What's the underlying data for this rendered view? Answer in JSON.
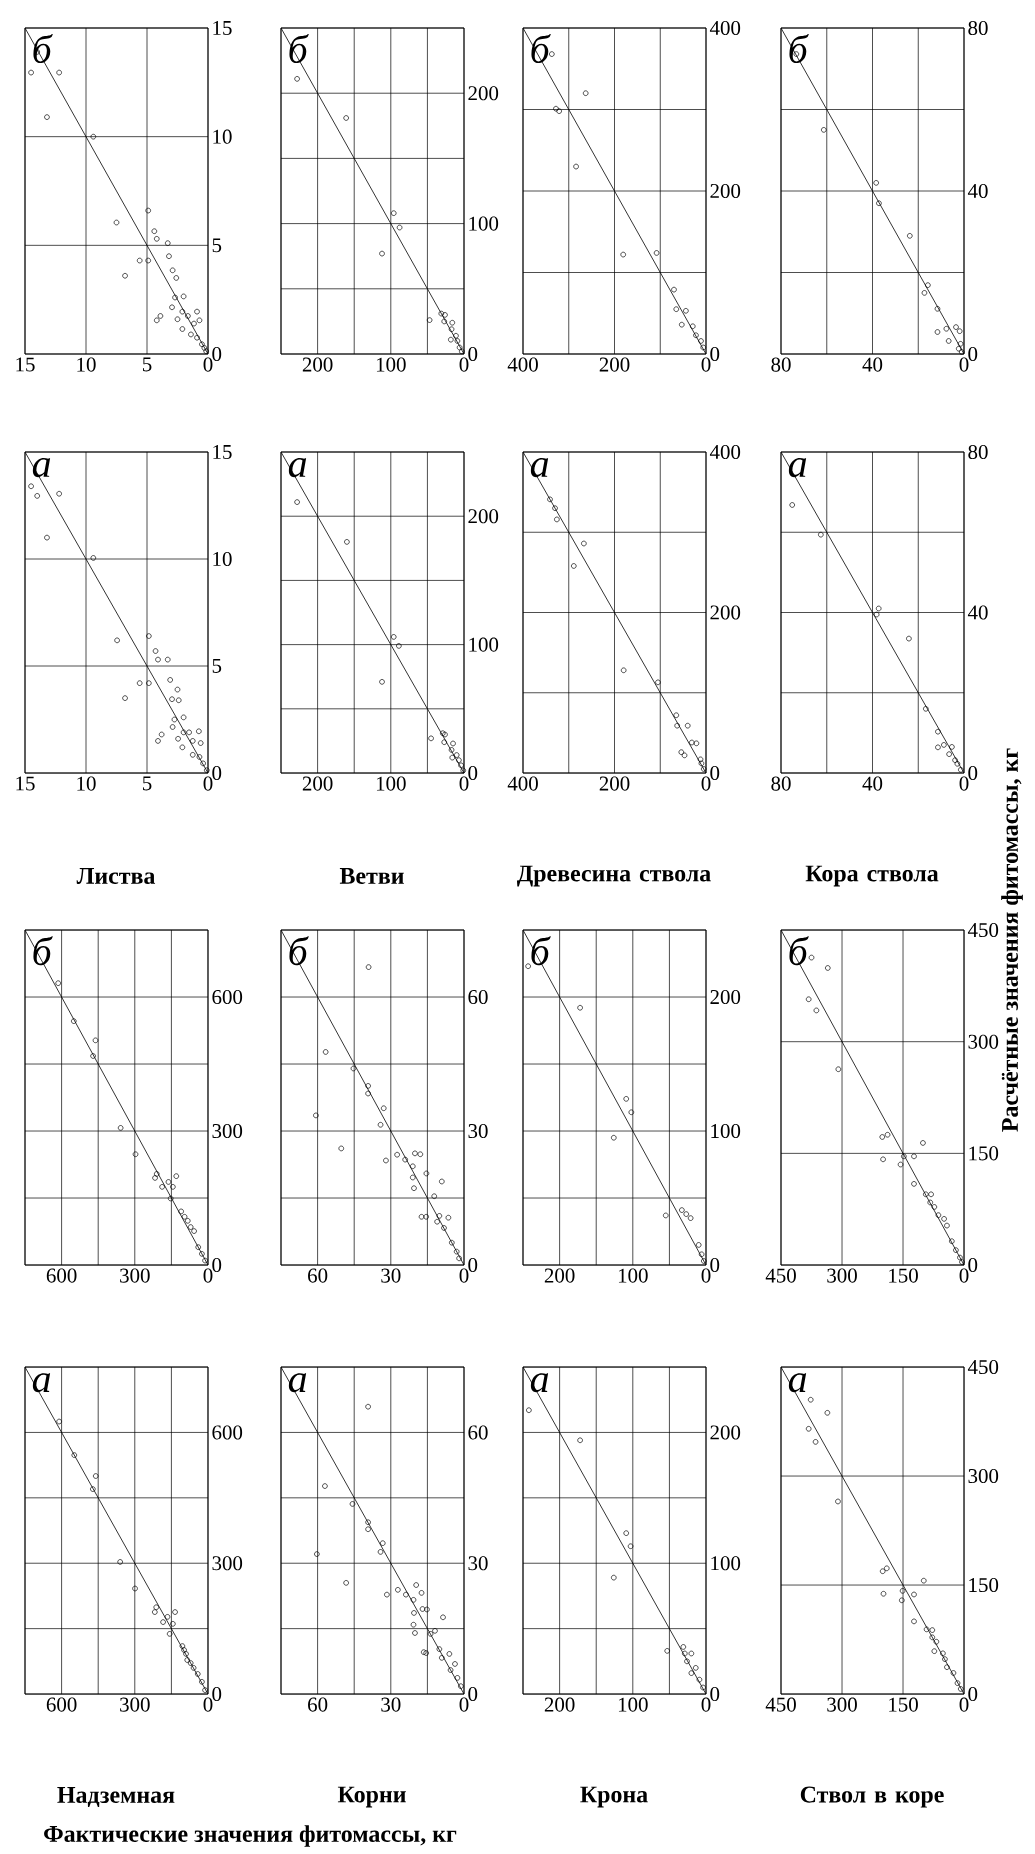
{
  "chart_data": [
    {
      "type": "scatter",
      "annotations": [
        "б"
      ],
      "xlim": [
        15,
        0
      ],
      "ylim": [
        0,
        15
      ],
      "xticks": [
        0,
        5,
        10,
        15
      ],
      "yticks": [
        0,
        5,
        10,
        15
      ],
      "grid": true,
      "series": [
        {
          "type": "scatter",
          "marker": "circle",
          "color": "#000000",
          "x": [
            14.0,
            14.5,
            12.2,
            13.2,
            9.4,
            4.9,
            7.5,
            4.4,
            4.2,
            3.3,
            3.2,
            5.6,
            4.9,
            6.8,
            2.9,
            2.6,
            2.7,
            2.0,
            2.95,
            2.1,
            4.2,
            3.9,
            2.5,
            1.65,
            0.9,
            2.1,
            1.15,
            0.7,
            1.4,
            0.9,
            0.5,
            0.3,
            0.15
          ],
          "values": [
            13.9,
            12.95,
            12.95,
            10.9,
            10.0,
            6.6,
            6.05,
            5.65,
            5.3,
            5.1,
            4.5,
            4.3,
            4.3,
            3.6,
            3.85,
            3.5,
            2.6,
            2.65,
            2.15,
            1.95,
            1.55,
            1.75,
            1.6,
            1.75,
            1.95,
            1.15,
            1.4,
            1.55,
            0.9,
            0.75,
            0.45,
            0.28,
            0.13
          ]
        },
        {
          "type": "line",
          "marker": "none",
          "color": "#000000",
          "x": [
            0,
            15
          ],
          "values": [
            0,
            15
          ]
        }
      ]
    },
    {
      "type": "scatter",
      "annotations": [
        "б"
      ],
      "xlim": [
        250,
        0
      ],
      "ylim": [
        0,
        250
      ],
      "xticks": [
        0,
        {
          "value": 50,
          "label": null
        },
        100,
        {
          "value": 150,
          "label": null
        },
        200,
        {
          "value": 250,
          "label": null
        }
      ],
      "yticks": [
        0,
        {
          "value": 50,
          "label": null
        },
        100,
        {
          "value": 150,
          "label": null
        },
        200,
        {
          "value": 250,
          "label": null
        }
      ],
      "grid": true,
      "series": [
        {
          "type": "scatter",
          "marker": "circle",
          "color": "#000000",
          "x": [
            228,
            161,
            96,
            88,
            112,
            47,
            31,
            26,
            27,
            16,
            17,
            11,
            18,
            9,
            6,
            3
          ],
          "values": [
            211,
            181,
            108,
            97,
            77,
            26,
            31,
            30,
            25,
            24,
            19,
            14,
            11,
            10,
            5,
            2
          ]
        },
        {
          "type": "line",
          "marker": "none",
          "color": "#000000",
          "x": [
            0,
            250
          ],
          "values": [
            0,
            250
          ]
        }
      ]
    },
    {
      "type": "scatter",
      "annotations": [
        "б"
      ],
      "xlim": [
        400,
        0
      ],
      "ylim": [
        0,
        400
      ],
      "xticks": [
        0,
        {
          "value": 100,
          "label": null
        },
        200,
        {
          "value": 300,
          "label": null
        },
        400
      ],
      "yticks": [
        0,
        {
          "value": 100,
          "label": null
        },
        200,
        {
          "value": 300,
          "label": null
        },
        400
      ],
      "grid": true,
      "series": [
        {
          "type": "scatter",
          "marker": "circle",
          "color": "#000000",
          "x": [
            337,
            263,
            328,
            321,
            284,
            181,
            108,
            70,
            65,
            44,
            53,
            29,
            22,
            11,
            6
          ],
          "values": [
            368,
            320,
            301,
            298,
            230,
            122,
            124,
            79,
            55,
            53,
            36,
            34,
            23,
            16,
            8
          ]
        },
        {
          "type": "line",
          "marker": "none",
          "color": "#000000",
          "x": [
            0,
            400
          ],
          "values": [
            0,
            400
          ]
        }
      ]
    },
    {
      "type": "scatter",
      "annotations": [
        "б"
      ],
      "xlim": [
        80,
        0
      ],
      "ylim": [
        0,
        80
      ],
      "xticks": [
        0,
        {
          "value": 20,
          "label": null
        },
        40,
        {
          "value": 60,
          "label": null
        },
        80
      ],
      "yticks": [
        0,
        {
          "value": 20,
          "label": null
        },
        40,
        {
          "value": 60,
          "label": null
        },
        80
      ],
      "grid": true,
      "series": [
        {
          "type": "scatter",
          "marker": "circle",
          "color": "#000000",
          "x": [
            73.3,
            61.3,
            38.4,
            37.2,
            23.7,
            15.8,
            17.3,
            11.6,
            11.6,
            7.7,
            3.5,
            1.9,
            6.7,
            1.5,
            2.3,
            1.0
          ],
          "values": [
            73.6,
            55,
            42,
            37,
            29,
            16.9,
            15,
            11.1,
            5.4,
            6.2,
            6.6,
            5.6,
            3.2,
            2.5,
            1.3,
            0.5
          ]
        },
        {
          "type": "line",
          "marker": "none",
          "color": "#000000",
          "x": [
            0,
            80
          ],
          "values": [
            0,
            80
          ]
        }
      ]
    },
    {
      "type": "scatter",
      "title": "Листва",
      "annotations": [
        "а"
      ],
      "xlim": [
        15,
        0
      ],
      "ylim": [
        0,
        15
      ],
      "xticks": [
        0,
        5,
        10,
        15
      ],
      "yticks": [
        0,
        5,
        10,
        15
      ],
      "grid": true,
      "series": [
        {
          "type": "scatter",
          "marker": "circle",
          "color": "#000000",
          "x": [
            14.5,
            14.0,
            12.2,
            13.2,
            9.4,
            7.45,
            4.85,
            4.3,
            4.1,
            3.3,
            4.85,
            5.6,
            6.8,
            3.1,
            2.5,
            2.95,
            2.4,
            2.0,
            2.75,
            2.9,
            4.1,
            3.8,
            2.0,
            1.55,
            0.75,
            2.45,
            2.1,
            1.25,
            0.6,
            1.25,
            0.7,
            0.4,
            0.1
          ],
          "values": [
            13.4,
            12.95,
            13.05,
            11.0,
            10.05,
            6.2,
            6.4,
            5.7,
            5.3,
            5.3,
            4.2,
            4.2,
            3.5,
            4.35,
            3.9,
            3.45,
            3.4,
            2.6,
            2.5,
            2.15,
            1.5,
            1.8,
            1.9,
            1.9,
            1.95,
            1.6,
            1.2,
            1.5,
            1.4,
            0.85,
            0.75,
            0.45,
            0.13
          ]
        },
        {
          "type": "line",
          "marker": "none",
          "color": "#000000",
          "x": [
            0,
            15
          ],
          "values": [
            0,
            15
          ]
        }
      ]
    },
    {
      "type": "scatter",
      "title": "Ветви",
      "annotations": [
        "а"
      ],
      "xlim": [
        250,
        0
      ],
      "ylim": [
        0,
        250
      ],
      "xticks": [
        0,
        {
          "value": 50,
          "label": null
        },
        100,
        {
          "value": 150,
          "label": null
        },
        200,
        {
          "value": 250,
          "label": null
        }
      ],
      "yticks": [
        0,
        {
          "value": 50,
          "label": null
        },
        100,
        {
          "value": 150,
          "label": null
        },
        200,
        {
          "value": 250,
          "label": null
        }
      ],
      "grid": true,
      "series": [
        {
          "type": "scatter",
          "marker": "circle",
          "color": "#000000",
          "x": [
            228,
            160,
            96,
            89,
            112,
            45,
            29,
            26,
            27,
            15,
            17,
            10,
            16,
            7,
            4,
            1
          ],
          "values": [
            211,
            180,
            106,
            99,
            71,
            27,
            31,
            30,
            24,
            23,
            18,
            14,
            12,
            10,
            6,
            2
          ]
        },
        {
          "type": "line",
          "marker": "none",
          "color": "#000000",
          "x": [
            0,
            250
          ],
          "values": [
            0,
            250
          ]
        }
      ]
    },
    {
      "type": "scatter",
      "title": "Древесина ствола",
      "annotations": [
        "а"
      ],
      "xlim": [
        400,
        0
      ],
      "ylim": [
        0,
        400
      ],
      "xticks": [
        0,
        {
          "value": 100,
          "label": null
        },
        200,
        {
          "value": 300,
          "label": null
        },
        400
      ],
      "yticks": [
        0,
        {
          "value": 100,
          "label": null
        },
        200,
        {
          "value": 300,
          "label": null
        },
        400
      ],
      "grid": true,
      "series": [
        {
          "type": "scatter",
          "marker": "circle",
          "color": "#000000",
          "x": [
            341,
            330,
            326,
            267,
            289,
            180,
            105,
            65,
            63,
            40,
            31,
            21,
            54,
            47,
            12,
            10,
            5
          ],
          "values": [
            341,
            330,
            316,
            286,
            258,
            128,
            113,
            72,
            59,
            59,
            38,
            37,
            26,
            22,
            17,
            12,
            5
          ]
        },
        {
          "type": "line",
          "marker": "none",
          "color": "#000000",
          "x": [
            0,
            400
          ],
          "values": [
            0,
            400
          ]
        }
      ]
    },
    {
      "type": "scatter",
      "title": "Кора ствола",
      "ylabel": "Расчётные значения фитомассы, кг",
      "annotations": [
        "а"
      ],
      "xlim": [
        80,
        0
      ],
      "ylim": [
        0,
        80
      ],
      "xticks": [
        0,
        {
          "value": 20,
          "label": null
        },
        40,
        {
          "value": 60,
          "label": null
        },
        80
      ],
      "yticks": [
        0,
        {
          "value": 20,
          "label": null
        },
        40,
        {
          "value": 60,
          "label": null
        },
        80
      ],
      "grid": true,
      "series": [
        {
          "type": "scatter",
          "marker": "circle",
          "color": "#000000",
          "x": [
            75.1,
            62.6,
            37.3,
            38.2,
            24.1,
            16.7,
            11.4,
            11.4,
            8.8,
            5.3,
            6.5,
            3.9,
            2.9,
            1.4
          ],
          "values": [
            66.8,
            59.4,
            41,
            39.5,
            33.5,
            16,
            10.3,
            6.4,
            7,
            6.5,
            4.7,
            3.2,
            2.3,
            0.8
          ]
        },
        {
          "type": "line",
          "marker": "none",
          "color": "#000000",
          "x": [
            0,
            80
          ],
          "values": [
            0,
            80
          ]
        }
      ]
    },
    {
      "type": "scatter",
      "annotations": [
        "б"
      ],
      "xlim": [
        750,
        0
      ],
      "ylim": [
        0,
        750
      ],
      "xticks": [
        0,
        {
          "value": 150,
          "label": null
        },
        300,
        {
          "value": 450,
          "label": null
        },
        600,
        {
          "value": 750,
          "label": null
        }
      ],
      "yticks": [
        0,
        {
          "value": 150,
          "label": null
        },
        300,
        {
          "value": 450,
          "label": null
        },
        600,
        {
          "value": 750,
          "label": null
        }
      ],
      "grid": true,
      "series": [
        {
          "type": "scatter",
          "marker": "circle",
          "color": "#000000",
          "x": [
            614,
            550,
            461,
            471,
            358,
            297,
            210,
            217,
            130,
            162,
            188,
            144,
            153,
            110,
            96,
            83,
            71,
            57,
            40,
            25,
            12
          ],
          "values": [
            631,
            546,
            503,
            468,
            307,
            248,
            204,
            195,
            199,
            186,
            175,
            175,
            149,
            120,
            108,
            99,
            85,
            76,
            40,
            25,
            10
          ]
        },
        {
          "type": "line",
          "marker": "none",
          "color": "#000000",
          "x": [
            0,
            750
          ],
          "values": [
            0,
            750
          ]
        }
      ]
    },
    {
      "type": "scatter",
      "annotations": [
        "б"
      ],
      "xlim": [
        75,
        0
      ],
      "ylim": [
        0,
        75
      ],
      "xticks": [
        0,
        {
          "value": 15,
          "label": null
        },
        30,
        {
          "value": 45,
          "label": null
        },
        60,
        {
          "value": 75,
          "label": null
        }
      ],
      "yticks": [
        0,
        {
          "value": 15,
          "label": null
        },
        30,
        {
          "value": 45,
          "label": null
        },
        60,
        {
          "value": 75,
          "label": null
        }
      ],
      "grid": true,
      "series": [
        {
          "type": "scatter",
          "marker": "circle",
          "color": "#000000",
          "x": [
            39.1,
            56.7,
            45.3,
            39.3,
            39.3,
            32.9,
            34.2,
            60.7,
            50.3,
            27.4,
            32.0,
            24.1,
            20.1,
            17.9,
            21.0,
            15.4,
            21.0,
            9.1,
            20.5,
            12.2,
            17.4,
            15.5,
            10.1,
            6.4,
            11.0,
            8.2,
            5,
            3,
            2
          ],
          "values": [
            66.7,
            47.7,
            44.0,
            40.1,
            38.4,
            35.1,
            31.4,
            33.5,
            26.1,
            24.7,
            23.4,
            23.6,
            25.0,
            24.8,
            22.1,
            20.5,
            19.6,
            18.7,
            17.2,
            15.4,
            10.8,
            10.8,
            11.0,
            10.6,
            9.7,
            8.3,
            5,
            3,
            1.5
          ]
        },
        {
          "type": "line",
          "marker": "none",
          "color": "#000000",
          "x": [
            0,
            75
          ],
          "values": [
            0,
            75
          ]
        }
      ]
    },
    {
      "type": "scatter",
      "annotations": [
        "б"
      ],
      "xlim": [
        250,
        0
      ],
      "ylim": [
        0,
        250
      ],
      "xticks": [
        0,
        {
          "value": 50,
          "label": null
        },
        100,
        {
          "value": 150,
          "label": null
        },
        200,
        {
          "value": 250,
          "label": null
        }
      ],
      "yticks": [
        0,
        {
          "value": 50,
          "label": null
        },
        100,
        {
          "value": 150,
          "label": null
        },
        200,
        {
          "value": 250,
          "label": null
        }
      ],
      "grid": true,
      "series": [
        {
          "type": "scatter",
          "marker": "circle",
          "color": "#000000",
          "x": [
            243,
            172,
            109,
            102,
            126,
            55,
            33,
            27,
            21,
            10,
            6,
            3
          ],
          "values": [
            223,
            192,
            124,
            114,
            95,
            37,
            41,
            38,
            35,
            15,
            8,
            3
          ]
        },
        {
          "type": "line",
          "marker": "none",
          "color": "#000000",
          "x": [
            0,
            250
          ],
          "values": [
            0,
            250
          ]
        }
      ]
    },
    {
      "type": "scatter",
      "annotations": [
        "б"
      ],
      "xlim": [
        450,
        0
      ],
      "ylim": [
        0,
        450
      ],
      "xticks": [
        0,
        150,
        300,
        450
      ],
      "yticks": [
        0,
        150,
        300,
        450
      ],
      "grid": true,
      "series": [
        {
          "type": "scatter",
          "marker": "circle",
          "color": "#000000",
          "x": [
            375,
            335,
            382,
            363,
            309,
            201,
            188,
            199,
            101,
            148,
            156,
            123,
            123,
            94,
            81,
            83,
            73,
            63,
            49,
            42,
            30,
            20,
            10,
            5
          ],
          "values": [
            413,
            399,
            357,
            342,
            263,
            172,
            175,
            142,
            164,
            146,
            135,
            146,
            109,
            95,
            95,
            84,
            78,
            67,
            62,
            53,
            32,
            20,
            10,
            4
          ]
        },
        {
          "type": "line",
          "marker": "none",
          "color": "#000000",
          "x": [
            0,
            450
          ],
          "values": [
            0,
            450
          ]
        }
      ]
    },
    {
      "type": "scatter",
      "title": "Надземная",
      "xlabel": "Фактические значения фитомассы, кг",
      "annotations": [
        "а"
      ],
      "xlim": [
        750,
        0
      ],
      "ylim": [
        0,
        750
      ],
      "xticks": [
        0,
        {
          "value": 150,
          "label": null
        },
        300,
        {
          "value": 450,
          "label": null
        },
        600,
        {
          "value": 750,
          "label": null
        }
      ],
      "yticks": [
        0,
        {
          "value": 150,
          "label": null
        },
        300,
        {
          "value": 450,
          "label": null
        },
        600,
        {
          "value": 750,
          "label": null
        }
      ],
      "grid": true,
      "series": [
        {
          "type": "scatter",
          "marker": "circle",
          "color": "#000000",
          "x": [
            610,
            548,
            460,
            472,
            360,
            299,
            212,
            218,
            135,
            166,
            184,
            144,
            157,
            105,
            98,
            90,
            85,
            71,
            59,
            42,
            25,
            12
          ],
          "values": [
            625,
            548,
            500,
            470,
            303,
            242,
            199,
            188,
            188,
            177,
            165,
            161,
            138,
            110,
            101,
            92,
            78,
            71,
            60,
            46,
            28,
            9
          ]
        },
        {
          "type": "line",
          "marker": "none",
          "color": "#000000",
          "x": [
            0,
            750
          ],
          "values": [
            0,
            750
          ]
        }
      ]
    },
    {
      "type": "scatter",
      "title": "Корни",
      "annotations": [
        "а"
      ],
      "xlim": [
        75,
        0
      ],
      "ylim": [
        0,
        75
      ],
      "xticks": [
        0,
        {
          "value": 15,
          "label": null
        },
        30,
        {
          "value": 45,
          "label": null
        },
        60,
        {
          "value": 75,
          "label": null
        }
      ],
      "yticks": [
        0,
        {
          "value": 15,
          "label": null
        },
        30,
        {
          "value": 45,
          "label": null
        },
        60,
        {
          "value": 75,
          "label": null
        }
      ],
      "grid": true,
      "series": [
        {
          "type": "scatter",
          "marker": "circle",
          "color": "#000000",
          "x": [
            39.3,
            57.0,
            45.7,
            39.3,
            39.3,
            33.3,
            34.2,
            60.3,
            48.3,
            27.1,
            31.6,
            23.8,
            19.6,
            17.4,
            20.7,
            17.0,
            15.2,
            20.5,
            8.6,
            20.7,
            20.1,
            11.9,
            13.7,
            16.5,
            15.5,
            10.1,
            6.0,
            9.1,
            3.7,
            5.5,
            2.7,
            1.3
          ],
          "values": [
            65.9,
            47.7,
            43.6,
            39.4,
            37.8,
            34.6,
            32.6,
            32.1,
            25.5,
            23.9,
            22.8,
            22.8,
            25.0,
            23.2,
            21.6,
            19.5,
            19.4,
            18.6,
            17.6,
            15.9,
            14.0,
            14.5,
            13.8,
            9.6,
            9.4,
            10.3,
            9.2,
            8.3,
            6.9,
            5.5,
            3.7,
            1.8
          ]
        },
        {
          "type": "line",
          "marker": "none",
          "color": "#000000",
          "x": [
            0,
            75
          ],
          "values": [
            0,
            75
          ]
        }
      ]
    },
    {
      "type": "scatter",
      "title": "Крона",
      "annotations": [
        "а"
      ],
      "xlim": [
        250,
        0
      ],
      "ylim": [
        0,
        250
      ],
      "xticks": [
        0,
        {
          "value": 50,
          "label": null
        },
        100,
        {
          "value": 150,
          "label": null
        },
        200,
        {
          "value": 250,
          "label": null
        }
      ],
      "yticks": [
        0,
        {
          "value": 50,
          "label": null
        },
        100,
        {
          "value": 150,
          "label": null
        },
        200,
        {
          "value": 250,
          "label": null
        }
      ],
      "grid": true,
      "series": [
        {
          "type": "scatter",
          "marker": "circle",
          "color": "#000000",
          "x": [
            242,
            172,
            109,
            103,
            126,
            53,
            31,
            29,
            20,
            26,
            14,
            20,
            9,
            4
          ],
          "values": [
            217,
            194,
            123,
            113,
            89,
            33,
            36,
            31,
            31,
            25,
            20,
            16,
            11,
            5
          ]
        },
        {
          "type": "line",
          "marker": "none",
          "color": "#000000",
          "x": [
            0,
            250
          ],
          "values": [
            0,
            250
          ]
        }
      ]
    },
    {
      "type": "scatter",
      "title": "Ствол в коре",
      "annotations": [
        "а"
      ],
      "xlim": [
        450,
        0
      ],
      "ylim": [
        0,
        450
      ],
      "xticks": [
        0,
        150,
        300,
        450
      ],
      "yticks": [
        0,
        150,
        300,
        450
      ],
      "grid": true,
      "series": [
        {
          "type": "scatter",
          "marker": "circle",
          "color": "#000000",
          "x": [
            377,
            336,
            382,
            365,
            310,
            200,
            190,
            198,
            99,
            151,
            153,
            123,
            123,
            92,
            78,
            78,
            68,
            73,
            52,
            47,
            42,
            26,
            16,
            8
          ],
          "values": [
            405,
            387,
            365,
            347,
            265,
            169,
            173,
            138,
            156,
            142,
            129,
            137,
            100,
            89,
            88,
            78,
            72,
            59,
            56,
            48,
            37,
            29,
            15,
            7
          ]
        },
        {
          "type": "line",
          "marker": "none",
          "color": "#000000",
          "x": [
            0,
            450
          ],
          "values": [
            0,
            450
          ]
        }
      ]
    }
  ]
}
